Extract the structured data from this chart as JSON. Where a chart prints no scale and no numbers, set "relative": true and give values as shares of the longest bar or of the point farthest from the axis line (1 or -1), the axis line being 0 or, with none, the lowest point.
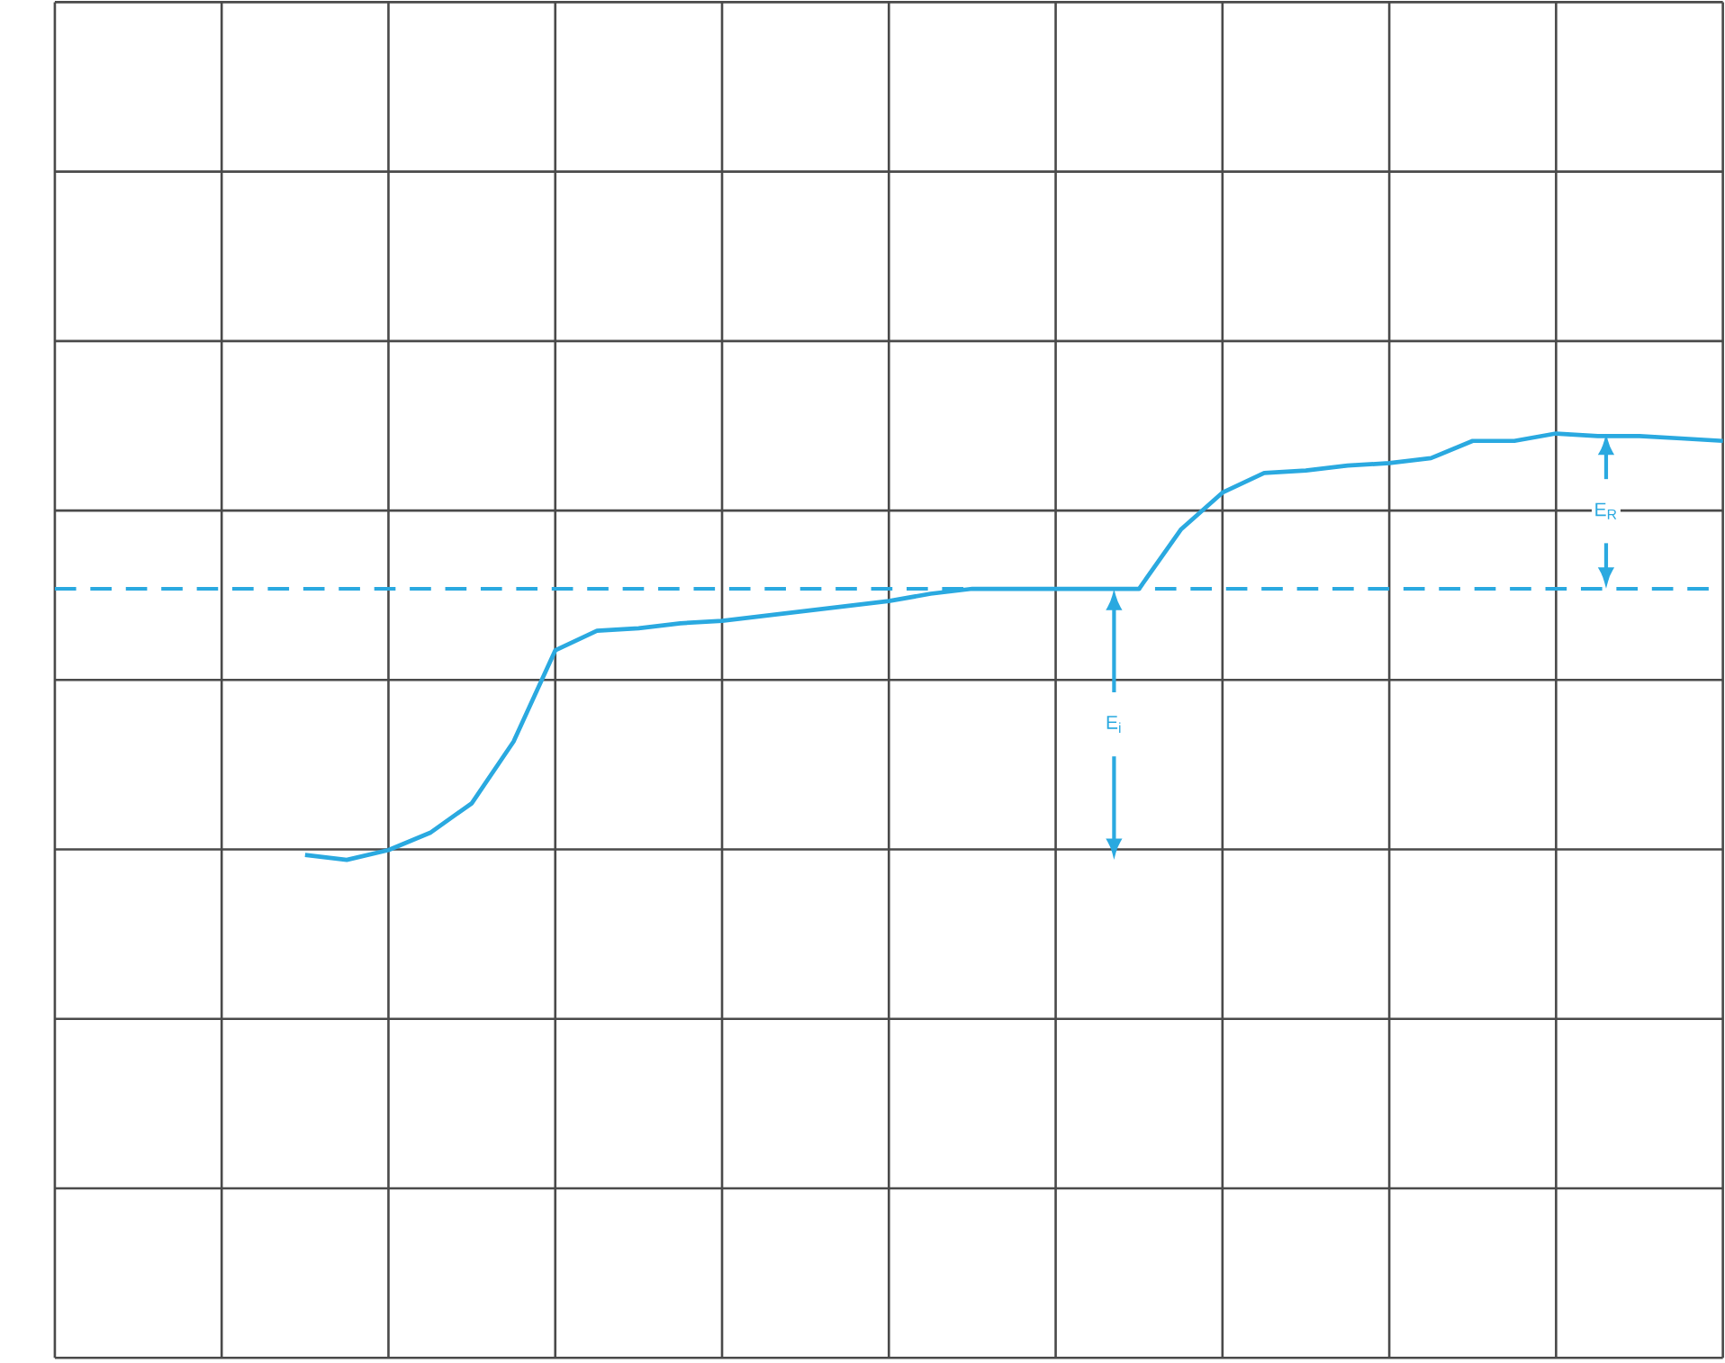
{
  "chart_data": {
    "type": "line",
    "relative": true,
    "categories": [
      null,
      null,
      null,
      null,
      null,
      null,
      null,
      null,
      null,
      null,
      null,
      null,
      null,
      null,
      null,
      null,
      null,
      null,
      null,
      null,
      null,
      null,
      null,
      null,
      null,
      null,
      null,
      null,
      null,
      null,
      null,
      null,
      null,
      null,
      null,
      null,
      null,
      null,
      null,
      null,
      null
    ],
    "values": [
      null,
      null,
      null,
      null,
      null,
      null,
      -0.71,
      -0.73,
      -0.69,
      -0.62,
      -0.5,
      -0.25,
      0.12,
      0.2,
      0.21,
      0.23,
      0.24,
      0.26,
      0.28,
      0.3,
      0.32,
      0.35,
      0.37,
      0.37,
      0.37,
      0.37,
      0.37,
      0.61,
      0.76,
      0.84,
      0.85,
      0.87,
      0.88,
      0.9,
      0.97,
      0.97,
      1,
      0.99,
      0.99,
      0.98,
      0.97
    ],
    "color": "#2aa9e0",
    "grid": true,
    "ref_lines": [
      {
        "axis": "y",
        "value": 0.37,
        "line_style": "dashed",
        "color": "#2aa9e0"
      }
    ],
    "annotations": [
      "E$_{i}$",
      "E$_{R}$"
    ]
  }
}
